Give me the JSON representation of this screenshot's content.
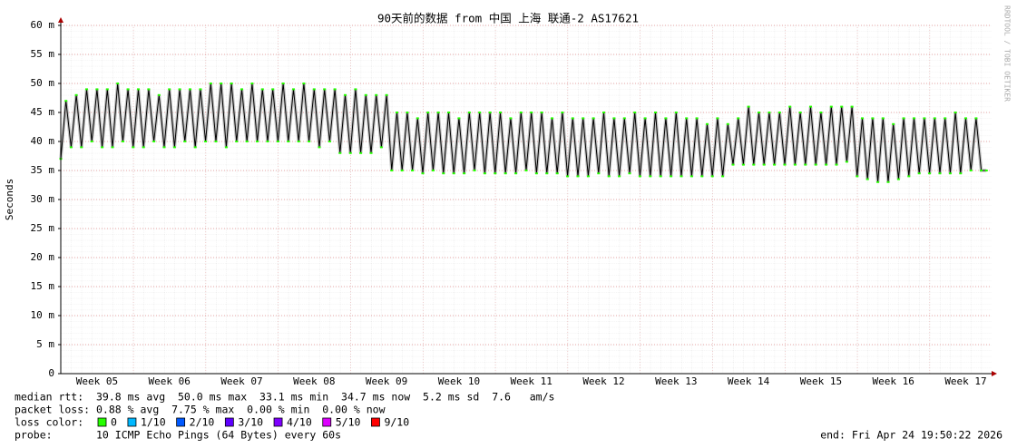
{
  "chart_data": {
    "type": "line",
    "title": "90天前的数据 from  中国 上海 联通-2 AS17621",
    "y_label": "Seconds",
    "watermark": "RRDTOOL / TOBI OETIKER",
    "color": "#000000",
    "smoke_color": "#9a9a9a",
    "grid": true,
    "xlim": [
      0,
      90
    ],
    "xticks": [
      {
        "value": 3.5,
        "label": "Week 05"
      },
      {
        "value": 10.5,
        "label": "Week 06"
      },
      {
        "value": 17.5,
        "label": "Week 07"
      },
      {
        "value": 24.5,
        "label": "Week 08"
      },
      {
        "value": 31.5,
        "label": "Week 09"
      },
      {
        "value": 38.5,
        "label": "Week 10"
      },
      {
        "value": 45.5,
        "label": "Week 11"
      },
      {
        "value": 52.5,
        "label": "Week 12"
      },
      {
        "value": 59.5,
        "label": "Week 13"
      },
      {
        "value": 66.5,
        "label": "Week 14"
      },
      {
        "value": 73.5,
        "label": "Week 15"
      },
      {
        "value": 80.5,
        "label": "Week 16"
      },
      {
        "value": 87.5,
        "label": "Week 17"
      }
    ],
    "ylim": [
      0,
      0.06
    ],
    "yticks": [
      0,
      {
        "value": 0.005,
        "label": "5 m"
      },
      {
        "value": 0.01,
        "label": "10 m"
      },
      {
        "value": 0.015,
        "label": "15 m"
      },
      {
        "value": 0.02,
        "label": "20 m"
      },
      {
        "value": 0.025,
        "label": "25 m"
      },
      {
        "value": 0.03,
        "label": "30 m"
      },
      {
        "value": 0.035,
        "label": "35 m"
      },
      {
        "value": 0.04,
        "label": "40 m"
      },
      {
        "value": 0.045,
        "label": "45 m"
      },
      {
        "value": 0.05,
        "label": "50 m"
      },
      {
        "value": 0.055,
        "label": "55 m"
      },
      {
        "value": 0.06,
        "label": "60 m"
      }
    ],
    "x": [
      0,
      0.5,
      1,
      1.5,
      2,
      2.5,
      3,
      3.5,
      4,
      4.5,
      5,
      5.5,
      6,
      6.5,
      7,
      7.5,
      8,
      8.5,
      9,
      9.5,
      10,
      10.5,
      11,
      11.5,
      12,
      12.5,
      13,
      13.5,
      14,
      14.5,
      15,
      15.5,
      16,
      16.5,
      17,
      17.5,
      18,
      18.5,
      19,
      19.5,
      20,
      20.5,
      21,
      21.5,
      22,
      22.5,
      23,
      23.5,
      24,
      24.5,
      25,
      25.5,
      26,
      26.5,
      27,
      27.5,
      28,
      28.5,
      29,
      29.5,
      30,
      30.5,
      31,
      31.5,
      32,
      32.5,
      33,
      33.5,
      34,
      34.5,
      35,
      35.5,
      36,
      36.5,
      37,
      37.5,
      38,
      38.5,
      39,
      39.5,
      40,
      40.5,
      41,
      41.5,
      42,
      42.5,
      43,
      43.5,
      44,
      44.5,
      45,
      45.5,
      46,
      46.5,
      47,
      47.5,
      48,
      48.5,
      49,
      49.5,
      50,
      50.5,
      51,
      51.5,
      52,
      52.5,
      53,
      53.5,
      54,
      54.5,
      55,
      55.5,
      56,
      56.5,
      57,
      57.5,
      58,
      58.5,
      59,
      59.5,
      60,
      60.5,
      61,
      61.5,
      62,
      62.5,
      63,
      63.5,
      64,
      64.5,
      65,
      65.5,
      66,
      66.5,
      67,
      67.5,
      68,
      68.5,
      69,
      69.5,
      70,
      70.5,
      71,
      71.5,
      72,
      72.5,
      73,
      73.5,
      74,
      74.5,
      75,
      75.5,
      76,
      76.5,
      77,
      77.5,
      78,
      78.5,
      79,
      79.5,
      80,
      80.5,
      81,
      81.5,
      82,
      82.5,
      83,
      83.5,
      84,
      84.5,
      85,
      85.5,
      86,
      86.5,
      87,
      87.5,
      88,
      88.5,
      89,
      89.5
    ],
    "values": [
      0.037,
      0.047,
      0.039,
      0.048,
      0.039,
      0.049,
      0.04,
      0.049,
      0.039,
      0.049,
      0.039,
      0.05,
      0.04,
      0.049,
      0.039,
      0.049,
      0.039,
      0.049,
      0.04,
      0.048,
      0.039,
      0.049,
      0.039,
      0.049,
      0.04,
      0.049,
      0.039,
      0.049,
      0.04,
      0.05,
      0.04,
      0.05,
      0.039,
      0.05,
      0.04,
      0.049,
      0.04,
      0.05,
      0.04,
      0.049,
      0.04,
      0.049,
      0.04,
      0.05,
      0.04,
      0.049,
      0.04,
      0.05,
      0.04,
      0.049,
      0.039,
      0.049,
      0.04,
      0.049,
      0.038,
      0.048,
      0.038,
      0.049,
      0.038,
      0.048,
      0.038,
      0.048,
      0.039,
      0.048,
      0.035,
      0.045,
      0.035,
      0.045,
      0.035,
      0.044,
      0.0345,
      0.045,
      0.035,
      0.045,
      0.0345,
      0.045,
      0.0345,
      0.044,
      0.0345,
      0.045,
      0.035,
      0.045,
      0.0345,
      0.045,
      0.0345,
      0.045,
      0.0345,
      0.044,
      0.0345,
      0.045,
      0.035,
      0.045,
      0.0345,
      0.045,
      0.0345,
      0.044,
      0.0345,
      0.045,
      0.034,
      0.044,
      0.034,
      0.044,
      0.034,
      0.044,
      0.0345,
      0.045,
      0.034,
      0.044,
      0.034,
      0.044,
      0.0345,
      0.045,
      0.034,
      0.044,
      0.034,
      0.045,
      0.034,
      0.044,
      0.034,
      0.045,
      0.034,
      0.044,
      0.034,
      0.044,
      0.034,
      0.043,
      0.034,
      0.044,
      0.034,
      0.043,
      0.036,
      0.044,
      0.036,
      0.046,
      0.036,
      0.045,
      0.036,
      0.045,
      0.036,
      0.045,
      0.036,
      0.046,
      0.036,
      0.045,
      0.036,
      0.046,
      0.036,
      0.045,
      0.036,
      0.046,
      0.036,
      0.046,
      0.0365,
      0.046,
      0.034,
      0.044,
      0.0335,
      0.044,
      0.033,
      0.044,
      0.033,
      0.043,
      0.0335,
      0.044,
      0.034,
      0.044,
      0.0345,
      0.044,
      0.0345,
      0.044,
      0.0345,
      0.044,
      0.0345,
      0.045,
      0.0345,
      0.044,
      0.035,
      0.044,
      0.035,
      0.035
    ],
    "stats": [
      "median rtt:  39.8 ms avg  50.0 ms max  33.1 ms min  34.7 ms now  5.2 ms sd  7.6   am/s",
      "packet loss: 0.88 % avg  7.75 % max  0.00 % min  0.00 % now"
    ],
    "loss_title": "loss color:",
    "loss_colors": [
      {
        "label": "0",
        "color": "#26ff00"
      },
      {
        "label": "1/10",
        "color": "#00b8ff"
      },
      {
        "label": "2/10",
        "color": "#0059ff"
      },
      {
        "label": "3/10",
        "color": "#5e00ff"
      },
      {
        "label": "4/10",
        "color": "#7e00ff"
      },
      {
        "label": "5/10",
        "color": "#dd00ff"
      },
      {
        "label": "9/10",
        "color": "#ff0000"
      }
    ],
    "probe": "probe:       10 ICMP Echo Pings (64 Bytes) every 60s",
    "end": "end: Fri Apr 24 19:50:22 2026"
  }
}
